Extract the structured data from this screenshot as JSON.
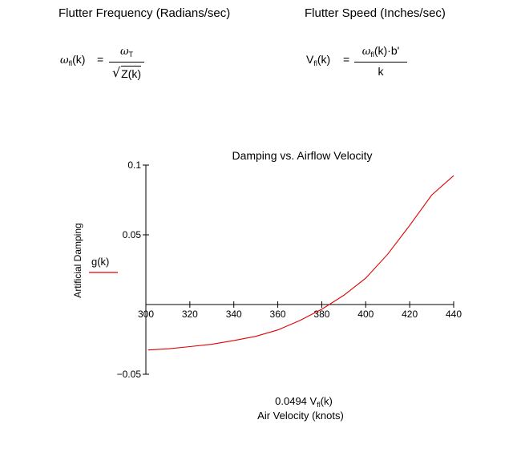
{
  "headings": {
    "frequency": "Flutter Frequency (Radians/sec)",
    "speed": "Flutter Speed (Inches/sec)"
  },
  "eq_freq": {
    "lhs_symbol": "ω",
    "lhs_sub": "fl",
    "lhs_arg": "(k)",
    "equals": "=",
    "num_symbol": "ω",
    "num_sub": "T",
    "den_radicand": "Z(k)"
  },
  "eq_speed": {
    "lhs": "V",
    "lhs_sub": "fl",
    "lhs_arg": "(k)",
    "equals": "=",
    "num_symbol": "ω",
    "num_sub": "fl",
    "num_rest": "(k)·b'",
    "den": "k"
  },
  "chart_data": {
    "type": "line",
    "title": "Damping vs. Airflow Velocity",
    "ylabel": "Artificial Damping",
    "xlabel_expr_coef": "0.0494 V",
    "xlabel_expr_sub": "fl",
    "xlabel_expr_arg": "(k)",
    "xlabel": "Air Velocity (knots)",
    "xlim": [
      300,
      440
    ],
    "ylim": [
      -0.05,
      0.1
    ],
    "x_ticks": [
      300,
      320,
      340,
      360,
      380,
      400,
      420,
      440
    ],
    "x_tick_labels": [
      "300",
      "320",
      "340",
      "360",
      "380",
      "400",
      "420",
      "440"
    ],
    "y_ticks": [
      0.1,
      0.05,
      -0.05
    ],
    "y_tick_labels": [
      "0.1",
      "0.05",
      "−0.05"
    ],
    "legend_label": "g(k)",
    "line_color": "#e00000",
    "series": [
      {
        "name": "g(k)",
        "x": [
          301,
          310,
          320,
          330,
          340,
          350,
          360,
          370,
          380,
          390,
          400,
          410,
          420,
          430,
          440
        ],
        "y": [
          -0.0326,
          -0.0318,
          -0.0302,
          -0.0285,
          -0.0258,
          -0.0228,
          -0.0182,
          -0.0115,
          -0.0034,
          0.0066,
          0.0189,
          0.0361,
          0.0567,
          0.0785,
          0.0924
        ]
      }
    ]
  }
}
